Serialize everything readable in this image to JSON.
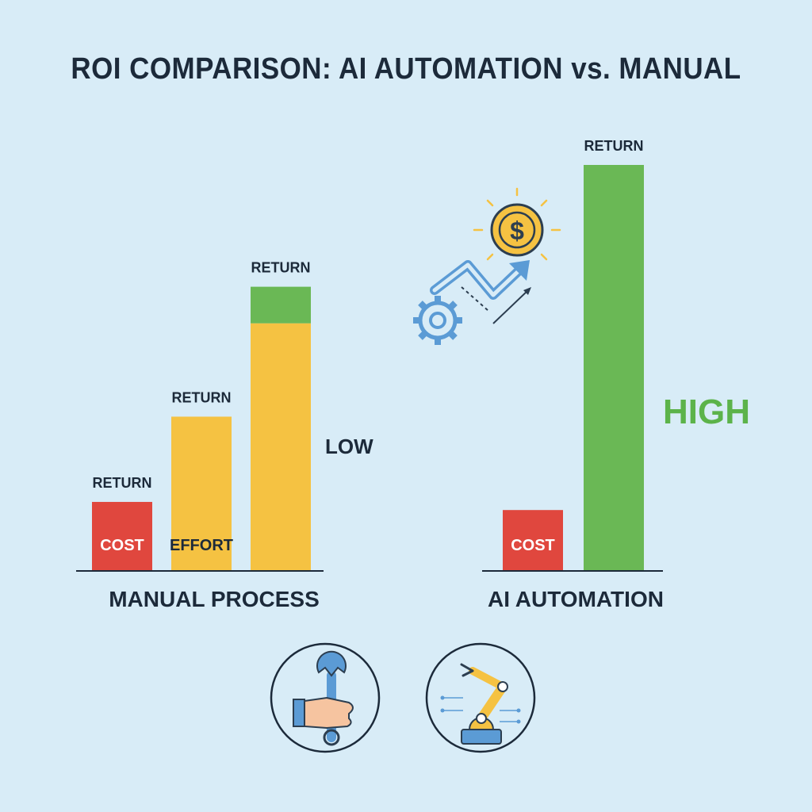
{
  "title": "ROI COMPARISON: AI AUTOMATION vs. MANUAL",
  "colors": {
    "background": "#d8ecf7",
    "cost": "#e0473e",
    "effort": "#f5c242",
    "return": "#6ab855",
    "text": "#1c2a3a",
    "high": "#5cb34a",
    "icon_line": "#2c3e50",
    "icon_blue": "#5b9bd5",
    "icon_gold": "#f5c242"
  },
  "chart_data": [
    {
      "type": "bar",
      "group_label": "MANUAL PROCESS",
      "annotation": "LOW",
      "bars": [
        {
          "label_above": "RETURN",
          "segments": [
            {
              "label": "COST",
              "value": 17,
              "color_key": "cost"
            }
          ]
        },
        {
          "label_above": "RETURN",
          "segments": [
            {
              "label": "EFFORT",
              "value": 38,
              "color_key": "effort"
            }
          ]
        },
        {
          "label_above": "RETURN",
          "segments": [
            {
              "label": "",
              "value": 61,
              "color_key": "effort"
            },
            {
              "label": "",
              "value": 9,
              "color_key": "return"
            }
          ]
        }
      ],
      "ylim": [
        0,
        100
      ]
    },
    {
      "type": "bar",
      "group_label": "AI AUTOMATION",
      "annotation": "HIGH",
      "bars": [
        {
          "label_above": "",
          "segments": [
            {
              "label": "COST",
              "value": 15,
              "color_key": "cost"
            }
          ]
        },
        {
          "label_above": "RETURN",
          "segments": [
            {
              "label": "",
              "value": 100,
              "color_key": "return"
            }
          ]
        }
      ],
      "ylim": [
        0,
        100
      ]
    }
  ],
  "icons": {
    "growth": "gear-arrow-dollar-icon",
    "manual": "hand-wrench-icon",
    "ai": "robot-arm-icon"
  },
  "dollar_symbol": "$"
}
